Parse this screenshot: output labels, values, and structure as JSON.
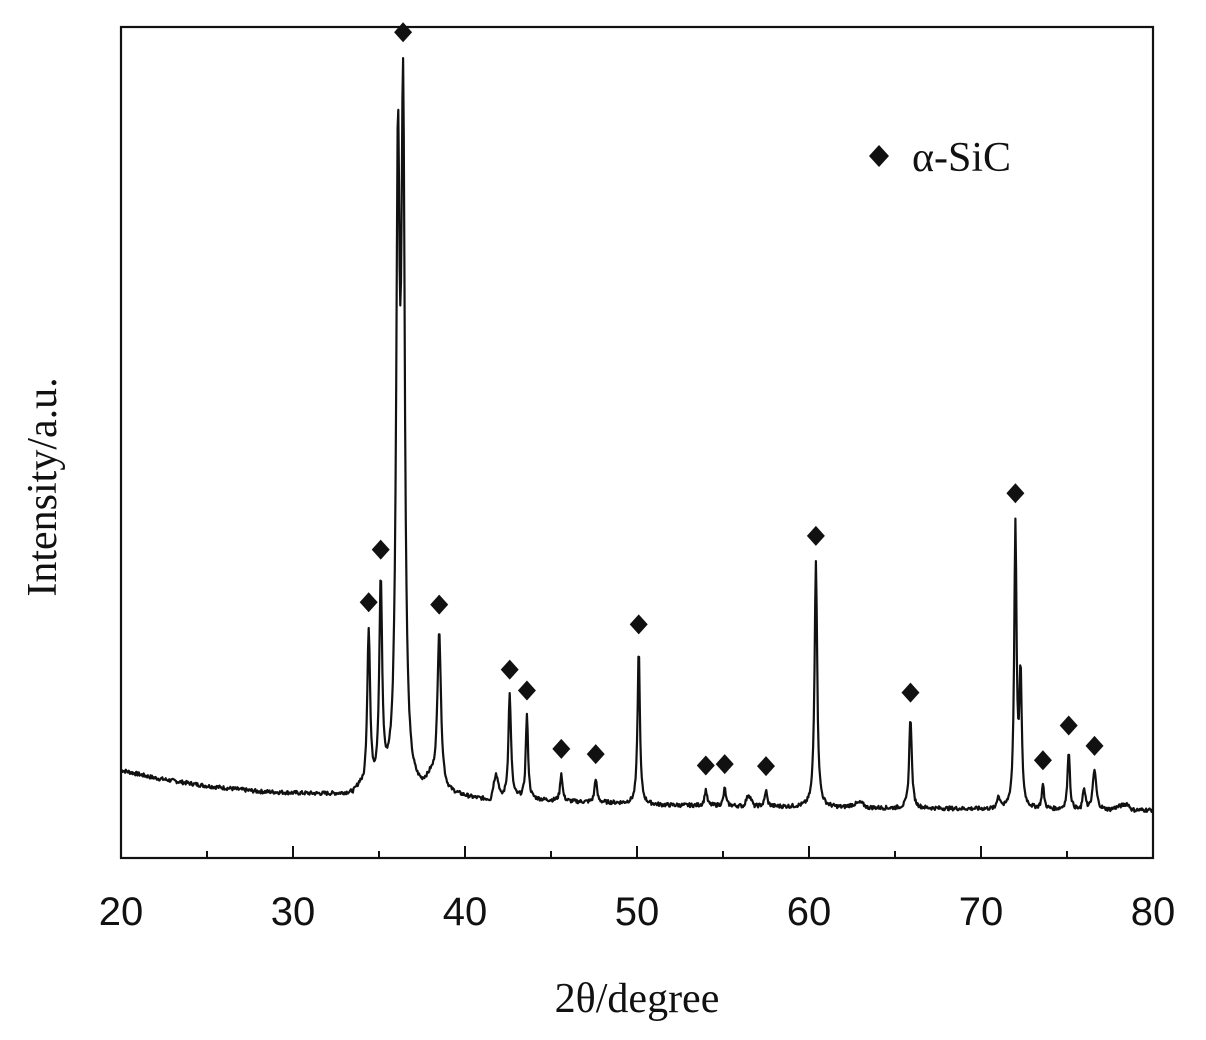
{
  "chart_data": {
    "type": "line",
    "xlabel": "2θ/degree",
    "ylabel": "Intensity/a.u.",
    "xlim": [
      20,
      80
    ],
    "ylim": [
      0,
      100
    ],
    "x_ticks": [
      20,
      30,
      40,
      50,
      60,
      70,
      80
    ],
    "y_ticks_shown": false,
    "grid": false,
    "legend_position": "top-right",
    "legend": [
      {
        "marker": "diamond",
        "label": "α-SiC"
      }
    ],
    "baseline": [
      [
        20.0,
        11.0
      ],
      [
        22.0,
        10.0
      ],
      [
        25.0,
        9.0
      ],
      [
        28.0,
        8.3
      ],
      [
        31.0,
        8.0
      ],
      [
        33.5,
        7.8
      ],
      [
        33.9,
        8.5
      ],
      [
        34.1,
        7.8
      ],
      [
        35.5,
        8.0
      ],
      [
        36.8,
        7.8
      ],
      [
        37.5,
        8.2
      ],
      [
        38.0,
        9.5
      ],
      [
        39.0,
        8.0
      ],
      [
        40.5,
        7.4
      ],
      [
        41.5,
        7.2
      ],
      [
        41.8,
        10.5
      ],
      [
        42.1,
        7.5
      ],
      [
        44.5,
        7.2
      ],
      [
        46.5,
        7.0
      ],
      [
        48.5,
        6.9
      ],
      [
        51.5,
        6.6
      ],
      [
        56.2,
        6.5
      ],
      [
        56.5,
        8.0
      ],
      [
        56.8,
        6.5
      ],
      [
        58.5,
        6.4
      ],
      [
        62.0,
        6.3
      ],
      [
        63.0,
        6.9
      ],
      [
        63.4,
        6.3
      ],
      [
        65.0,
        6.2
      ],
      [
        67.0,
        6.2
      ],
      [
        70.8,
        6.1
      ],
      [
        71.0,
        7.5
      ],
      [
        71.3,
        6.1
      ],
      [
        75.8,
        6.0
      ],
      [
        76.0,
        8.5
      ],
      [
        76.2,
        6.0
      ],
      [
        77.5,
        6.0
      ],
      [
        78.5,
        6.8
      ],
      [
        78.8,
        6.0
      ],
      [
        80.0,
        6.0
      ]
    ],
    "peaks": [
      {
        "x": 34.4,
        "y": 20.0,
        "w": 0.1,
        "marked": true
      },
      {
        "x": 35.1,
        "y": 25.5,
        "w": 0.1,
        "marked": true
      },
      {
        "x": 36.1,
        "y": 75.0,
        "w": 0.12,
        "marked": false
      },
      {
        "x": 36.4,
        "y": 82.0,
        "w": 0.12,
        "marked": true
      },
      {
        "x": 38.5,
        "y": 19.5,
        "w": 0.12,
        "marked": true
      },
      {
        "x": 42.6,
        "y": 13.0,
        "w": 0.09,
        "marked": true
      },
      {
        "x": 43.6,
        "y": 10.5,
        "w": 0.08,
        "marked": true
      },
      {
        "x": 45.6,
        "y": 3.5,
        "w": 0.08,
        "marked": true
      },
      {
        "x": 47.6,
        "y": 3.0,
        "w": 0.08,
        "marked": true
      },
      {
        "x": 50.1,
        "y": 19.5,
        "w": 0.08,
        "marked": true
      },
      {
        "x": 54.0,
        "y": 2.0,
        "w": 0.08,
        "marked": true
      },
      {
        "x": 55.1,
        "y": 2.2,
        "w": 0.08,
        "marked": true
      },
      {
        "x": 57.5,
        "y": 2.0,
        "w": 0.08,
        "marked": true
      },
      {
        "x": 60.4,
        "y": 31.0,
        "w": 0.09,
        "marked": true
      },
      {
        "x": 65.9,
        "y": 11.5,
        "w": 0.09,
        "marked": true
      },
      {
        "x": 72.0,
        "y": 35.5,
        "w": 0.08,
        "marked": true
      },
      {
        "x": 72.3,
        "y": 16.5,
        "w": 0.08,
        "marked": false
      },
      {
        "x": 73.6,
        "y": 3.0,
        "w": 0.08,
        "marked": true
      },
      {
        "x": 75.1,
        "y": 7.5,
        "w": 0.08,
        "marked": true
      },
      {
        "x": 76.6,
        "y": 5.0,
        "w": 0.12,
        "marked": true
      }
    ]
  }
}
